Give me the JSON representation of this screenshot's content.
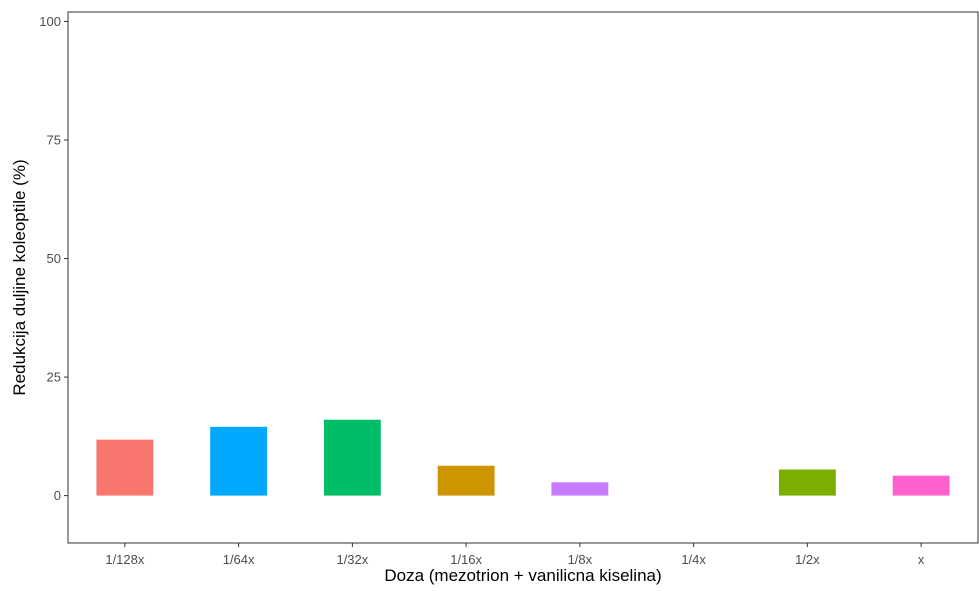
{
  "chart_data": {
    "type": "bar",
    "title": "",
    "xlabel": "Doza (mezotrion + vanilicna kiselina)",
    "ylabel": "Redukcija duljine koleoptile (%)",
    "categories": [
      "1/128x",
      "1/64x",
      "1/32x",
      "1/16x",
      "1/8x",
      "1/4x",
      "1/2x",
      "x"
    ],
    "values": [
      11.8,
      14.5,
      16.0,
      6.3,
      2.8,
      0.0,
      5.5,
      4.2
    ],
    "colors": [
      "#F8766D",
      "#00A9FF",
      "#00BE67",
      "#CD9600",
      "#C77CFF",
      "#00BFC4",
      "#7CAE00",
      "#FF61CC"
    ],
    "ylim": [
      -10,
      102
    ],
    "yticks": [
      0,
      25,
      50,
      75,
      100
    ],
    "grid": false,
    "legend": "none"
  }
}
